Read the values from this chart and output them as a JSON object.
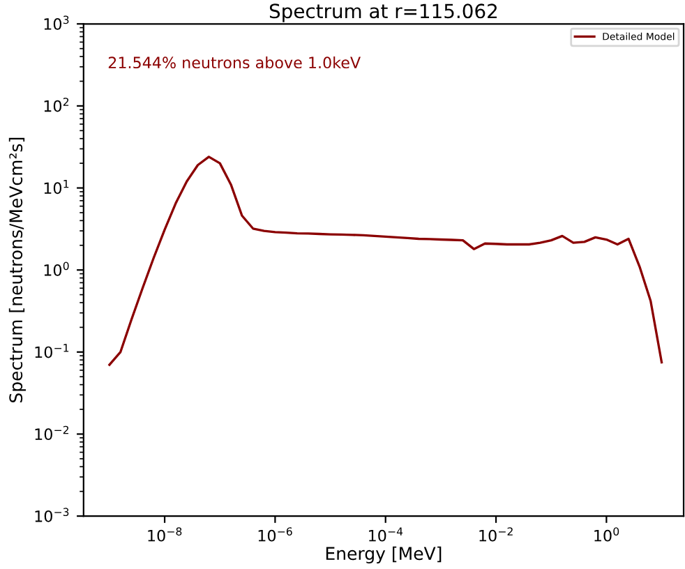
{
  "chart_data": {
    "type": "line",
    "title": "Spectrum at r=115.062",
    "xlabel": "Energy [MeV]",
    "ylabel": "Spectrum [neutrons/MeVcm²s]",
    "annotations": [
      "21.544% neutrons above 1.0keV"
    ],
    "log": "xy",
    "legend": "top right",
    "grid": false,
    "marker": "none",
    "line_style": "solid",
    "xlim": [
      3.4e-10,
      25
    ],
    "ylim": [
      0.001,
      1000
    ],
    "xticks": [
      {
        "value": 1e-08,
        "label": "10$^{−8}$"
      },
      {
        "value": 1e-06,
        "label": "10$^{−6}$"
      },
      {
        "value": 0.0001,
        "label": "10$^{−4}$"
      },
      {
        "value": 0.01,
        "label": "10$^{−2}$"
      },
      {
        "value": 1,
        "label": "10$^{0}$"
      }
    ],
    "yticks": [
      {
        "value": 0.001,
        "label": "10$^{−3}$"
      },
      {
        "value": 0.01,
        "label": "10$^{−2}$"
      },
      {
        "value": 0.1,
        "label": "10$^{−1}$"
      },
      {
        "value": 1,
        "label": "10$^{0}$"
      },
      {
        "value": 10,
        "label": "10$^{1}$"
      },
      {
        "value": 100,
        "label": "10$^{2}$"
      },
      {
        "value": 1000,
        "label": "10$^{3}$"
      }
    ],
    "x": [
      1e-09,
      1.585e-09,
      2.512e-09,
      3.981e-09,
      6.31e-09,
      1e-08,
      1.585e-08,
      2.512e-08,
      3.981e-08,
      6.31e-08,
      1e-07,
      1.585e-07,
      2.512e-07,
      3.981e-07,
      6.31e-07,
      1e-06,
      1.585e-06,
      2.512e-06,
      3.981e-06,
      6.31e-06,
      1e-05,
      1.585e-05,
      2.512e-05,
      3.981e-05,
      6.31e-05,
      0.0001,
      0.0001585,
      0.0002512,
      0.0003981,
      0.000631,
      0.001,
      0.001585,
      0.002512,
      0.003981,
      0.00631,
      0.01,
      0.01585,
      0.02512,
      0.03981,
      0.0631,
      0.1,
      0.1585,
      0.2512,
      0.3981,
      0.631,
      1,
      1.585,
      2.512,
      3.981,
      6.31,
      10
    ],
    "series": [
      {
        "name": "Detailed Model",
        "color": "#8b0000",
        "values": [
          0.07,
          0.1,
          0.25,
          0.6,
          1.4,
          3.1,
          6.5,
          12,
          19,
          24,
          20,
          11,
          4.6,
          3.2,
          3.0,
          2.9,
          2.85,
          2.8,
          2.78,
          2.75,
          2.72,
          2.7,
          2.68,
          2.65,
          2.6,
          2.55,
          2.5,
          2.45,
          2.4,
          2.38,
          2.35,
          2.33,
          2.3,
          1.8,
          2.1,
          2.08,
          2.05,
          2.05,
          2.05,
          2.15,
          2.3,
          2.6,
          2.15,
          2.2,
          2.5,
          2.35,
          2.05,
          2.4,
          1.1,
          0.42,
          0.075
        ]
      }
    ]
  }
}
